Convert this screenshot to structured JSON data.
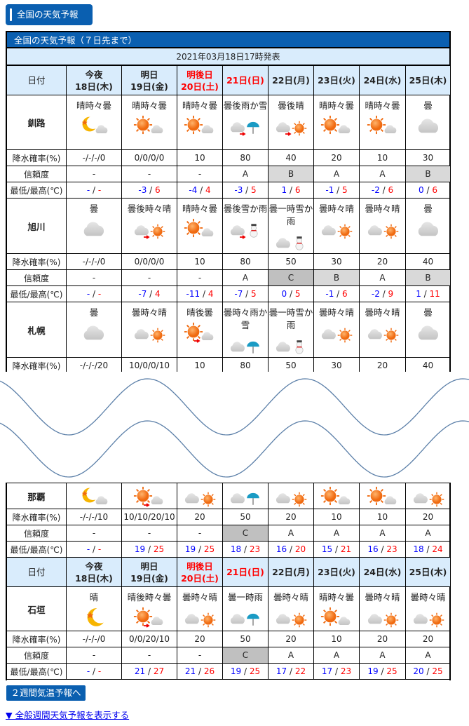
{
  "header_button": "全国の天気予報",
  "table_title": "全国の天気予報（７日先まで）",
  "issued": "2021年03月18日17時発表",
  "row_labels": {
    "date": "日付",
    "pop": "降水確率(%)",
    "rel": "信頼度",
    "temp": "最低/最高(℃)"
  },
  "days": [
    {
      "l1": "今夜",
      "l2": "18日(木)",
      "red": false
    },
    {
      "l1": "明日",
      "l2": "19日(金)",
      "red": false
    },
    {
      "l1": "明後日",
      "l2": "20日(土)",
      "red": true
    },
    {
      "l1": "",
      "l2": "21日(日)",
      "red": true
    },
    {
      "l1": "",
      "l2": "22日(月)",
      "red": false
    },
    {
      "l1": "",
      "l2": "23日(火)",
      "red": false
    },
    {
      "l1": "",
      "l2": "24日(水)",
      "red": false
    },
    {
      "l1": "",
      "l2": "25日(木)",
      "red": false
    }
  ],
  "stations": [
    {
      "name": "釧路",
      "weather": [
        {
          "text": "晴時々曇",
          "icon": [
            "moon",
            "cloud",
            false
          ]
        },
        {
          "text": "晴時々曇",
          "icon": [
            "sun",
            "cloud",
            false
          ]
        },
        {
          "text": "晴時々曇",
          "icon": [
            "sun",
            "cloud",
            false
          ]
        },
        {
          "text": "曇後雨か雪",
          "icon": [
            "cloud",
            "umbrella",
            true
          ]
        },
        {
          "text": "曇後晴",
          "icon": [
            "cloud",
            "sun",
            true
          ]
        },
        {
          "text": "晴時々曇",
          "icon": [
            "sun",
            "cloud",
            false
          ]
        },
        {
          "text": "晴時々曇",
          "icon": [
            "sun",
            "cloud",
            false
          ]
        },
        {
          "text": "曇",
          "icon": [
            "cloud",
            "",
            false
          ]
        }
      ],
      "pop": [
        "-/-/-/0",
        "0/0/0/0",
        "10",
        "80",
        "40",
        "20",
        "10",
        "30"
      ],
      "rel": [
        "-",
        "-",
        "-",
        "A",
        "B",
        "A",
        "A",
        "B"
      ],
      "temp": [
        [
          "-",
          "-"
        ],
        [
          "-3",
          "6"
        ],
        [
          "-4",
          "4"
        ],
        [
          "-3",
          "5"
        ],
        [
          "1",
          "6"
        ],
        [
          "-1",
          "5"
        ],
        [
          "-2",
          "6"
        ],
        [
          "0",
          "6"
        ]
      ]
    },
    {
      "name": "旭川",
      "weather": [
        {
          "text": "曇",
          "icon": [
            "cloud",
            "",
            false
          ]
        },
        {
          "text": "曇後時々晴",
          "icon": [
            "cloud",
            "sun",
            true
          ]
        },
        {
          "text": "晴時々曇",
          "icon": [
            "sun",
            "cloud",
            false
          ]
        },
        {
          "text": "曇後雪か雨",
          "icon": [
            "cloud",
            "snowman",
            true
          ]
        },
        {
          "text": "曇一時雪か雨",
          "icon": [
            "cloud",
            "snowman",
            false
          ]
        },
        {
          "text": "曇時々晴",
          "icon": [
            "cloud",
            "sun",
            false
          ]
        },
        {
          "text": "曇時々晴",
          "icon": [
            "cloud",
            "sun",
            false
          ]
        },
        {
          "text": "曇",
          "icon": [
            "cloud",
            "",
            false
          ]
        }
      ],
      "pop": [
        "-/-/-/0",
        "0/0/0/0",
        "10",
        "80",
        "50",
        "30",
        "20",
        "40"
      ],
      "rel": [
        "-",
        "-",
        "-",
        "A",
        "C",
        "B",
        "A",
        "B"
      ],
      "temp": [
        [
          "-",
          "-"
        ],
        [
          "-7",
          "4"
        ],
        [
          "-11",
          "4"
        ],
        [
          "-7",
          "5"
        ],
        [
          "0",
          "5"
        ],
        [
          "-1",
          "6"
        ],
        [
          "-2",
          "9"
        ],
        [
          "1",
          "11"
        ]
      ]
    },
    {
      "name": "札幌",
      "weather": [
        {
          "text": "曇",
          "icon": [
            "cloud",
            "",
            false
          ]
        },
        {
          "text": "曇時々晴",
          "icon": [
            "cloud",
            "sun",
            false
          ]
        },
        {
          "text": "晴後曇",
          "icon": [
            "sun",
            "cloud",
            true
          ]
        },
        {
          "text": "曇時々雨か雪",
          "icon": [
            "cloud",
            "umbrella",
            false
          ]
        },
        {
          "text": "曇一時雪か雨",
          "icon": [
            "cloud",
            "snowman",
            false
          ]
        },
        {
          "text": "曇時々晴",
          "icon": [
            "cloud",
            "sun",
            false
          ]
        },
        {
          "text": "曇時々晴",
          "icon": [
            "cloud",
            "sun",
            false
          ]
        },
        {
          "text": "曇",
          "icon": [
            "cloud",
            "",
            false
          ]
        }
      ],
      "pop": [
        "-/-/-/20",
        "10/0/0/10",
        "10",
        "80",
        "50",
        "30",
        "20",
        "40"
      ]
    },
    {
      "name": "那覇",
      "weather": [
        {
          "text": "",
          "icon": [
            "moon",
            "cloud",
            false
          ]
        },
        {
          "text": "",
          "icon": [
            "sun",
            "cloud",
            true
          ]
        },
        {
          "text": "",
          "icon": [
            "cloud",
            "sun",
            false
          ]
        },
        {
          "text": "",
          "icon": [
            "cloud",
            "umbrella",
            false
          ]
        },
        {
          "text": "",
          "icon": [
            "cloud",
            "sun",
            false
          ]
        },
        {
          "text": "",
          "icon": [
            "sun",
            "cloud",
            false
          ]
        },
        {
          "text": "",
          "icon": [
            "sun",
            "cloud",
            false
          ]
        },
        {
          "text": "",
          "icon": [
            "cloud",
            "sun",
            false
          ]
        }
      ],
      "pop": [
        "-/-/-/10",
        "10/10/20/10",
        "20",
        "50",
        "20",
        "10",
        "10",
        "20"
      ],
      "rel": [
        "-",
        "-",
        "-",
        "C",
        "A",
        "A",
        "A",
        "A"
      ],
      "temp": [
        [
          "-",
          "-"
        ],
        [
          "19",
          "25"
        ],
        [
          "19",
          "25"
        ],
        [
          "18",
          "23"
        ],
        [
          "16",
          "20"
        ],
        [
          "15",
          "21"
        ],
        [
          "16",
          "23"
        ],
        [
          "18",
          "24"
        ]
      ]
    },
    {
      "name": "石垣",
      "weather": [
        {
          "text": "晴",
          "icon": [
            "moon",
            "",
            false
          ]
        },
        {
          "text": "晴後時々曇",
          "icon": [
            "sun",
            "cloud",
            true
          ]
        },
        {
          "text": "曇時々晴",
          "icon": [
            "cloud",
            "sun",
            false
          ]
        },
        {
          "text": "曇一時雨",
          "icon": [
            "cloud",
            "umbrella",
            false
          ]
        },
        {
          "text": "曇時々晴",
          "icon": [
            "cloud",
            "sun",
            false
          ]
        },
        {
          "text": "晴時々曇",
          "icon": [
            "sun",
            "cloud",
            false
          ]
        },
        {
          "text": "曇時々晴",
          "icon": [
            "cloud",
            "sun",
            false
          ]
        },
        {
          "text": "曇時々晴",
          "icon": [
            "cloud",
            "sun",
            false
          ]
        }
      ],
      "pop": [
        "-/-/-/0",
        "0/0/20/10",
        "20",
        "50",
        "20",
        "10",
        "20",
        "20"
      ],
      "rel": [
        "-",
        "-",
        "-",
        "C",
        "A",
        "A",
        "A",
        "A"
      ],
      "temp": [
        [
          "-",
          "-"
        ],
        [
          "21",
          "27"
        ],
        [
          "21",
          "26"
        ],
        [
          "19",
          "25"
        ],
        [
          "17",
          "22"
        ],
        [
          "17",
          "23"
        ],
        [
          "19",
          "25"
        ],
        [
          "20",
          "25"
        ]
      ]
    }
  ],
  "two_week_button": "２週間気温予報へ",
  "general_link": "▼ 全般週間天気予報を表示する",
  "colors": {
    "brand": "#0a5fb0",
    "header_bg": "#d9ecfc",
    "min": "#0000ff",
    "max": "#ff0000",
    "relB": "#d9d9d9",
    "relC": "#c0c0c0"
  }
}
